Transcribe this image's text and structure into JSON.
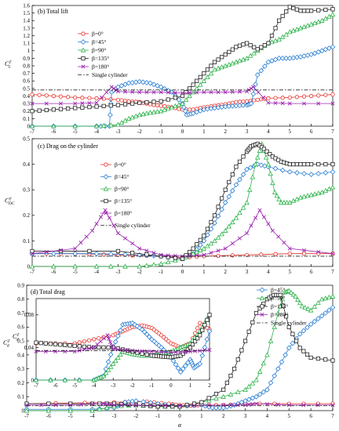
{
  "chart_data": [
    {
      "type": "line",
      "title": "(b) Total lift",
      "ylabel": "C_L^T",
      "ylabel_main": "C",
      "ylabel_sup": "T",
      "ylabel_sub": "L",
      "xlim": [
        -7,
        7
      ],
      "ylim": [
        0,
        1.6
      ],
      "xticks": [
        "-7",
        "-6",
        "-5",
        "-4",
        "-3",
        "-2",
        "-1",
        "0",
        "1",
        "2",
        "3",
        "4",
        "5",
        "6",
        "7"
      ],
      "yticks": [
        "0",
        "0.1",
        "0.2",
        "0.3",
        "0.4",
        "0.5",
        "0.6",
        "0.7",
        "0.8",
        "0.9",
        "1",
        "1.1",
        "1.2",
        "1.3",
        "1.4",
        "1.5",
        "1.6"
      ],
      "legend_position": "upper-left",
      "series": [
        {
          "name": "β=0°",
          "color": "#e8302a",
          "marker": "circle",
          "x": [
            -7,
            -6,
            -5,
            -4,
            -3,
            -2.5,
            -2,
            -1.5,
            -1,
            -0.5,
            0,
            0.5,
            1,
            1.5,
            2,
            2.5,
            3,
            3.5,
            4,
            5,
            6,
            7
          ],
          "y": [
            0.42,
            0.4,
            0.38,
            0.37,
            0.35,
            0.33,
            0.32,
            0.29,
            0.27,
            0.25,
            0.22,
            0.22,
            0.25,
            0.27,
            0.29,
            0.32,
            0.33,
            0.35,
            0.37,
            0.38,
            0.4,
            0.42
          ]
        },
        {
          "name": "β=45°",
          "color": "#2a7fd4",
          "marker": "diamond",
          "x": [
            -7,
            -4,
            -3.4,
            -3.3,
            -3,
            -2.5,
            -2,
            -1.5,
            -1,
            -0.5,
            0,
            0.2,
            0.5,
            1,
            1.5,
            2,
            2.5,
            3,
            3.2,
            3.5,
            4,
            4.5,
            5,
            5.5,
            6,
            6.5,
            7
          ],
          "y": [
            0,
            0,
            0,
            0.45,
            0.52,
            0.57,
            0.59,
            0.57,
            0.52,
            0.45,
            0.3,
            0.15,
            0.17,
            0.22,
            0.24,
            0.26,
            0.27,
            0.28,
            0.3,
            0.68,
            0.85,
            0.9,
            0.9,
            0.92,
            0.95,
            1.0,
            1.05
          ]
        },
        {
          "name": "β=90°",
          "color": "#2db34a",
          "marker": "triangle",
          "x": [
            -7,
            -4,
            -3,
            -2.5,
            -2,
            -1.5,
            -1,
            -0.5,
            0,
            0.5,
            1,
            1.5,
            2,
            2.5,
            3,
            3.5,
            4,
            4.5,
            5,
            5.5,
            6,
            6.5,
            7
          ],
          "y": [
            0,
            0,
            0.02,
            0.1,
            0.15,
            0.18,
            0.2,
            0.25,
            0.3,
            0.45,
            0.6,
            0.75,
            0.8,
            0.85,
            0.9,
            1.0,
            1.1,
            1.15,
            1.25,
            1.3,
            1.35,
            1.4,
            1.48
          ]
        },
        {
          "name": "β=135°",
          "color": "#222222",
          "marker": "square",
          "x": [
            -7,
            -6,
            -5,
            -4,
            -3,
            -2,
            -1,
            0,
            0.5,
            1,
            1.5,
            2,
            2.5,
            3,
            3.5,
            4,
            4.5,
            5,
            5.5,
            6,
            7
          ],
          "y": [
            0.2,
            0.22,
            0.24,
            0.26,
            0.28,
            0.31,
            0.33,
            0.4,
            0.55,
            0.7,
            0.85,
            0.95,
            1.05,
            1.1,
            1.02,
            1.1,
            1.4,
            1.58,
            1.53,
            1.53,
            1.55
          ]
        },
        {
          "name": "β=180°",
          "color": "#9c27b0",
          "marker": "x",
          "x": [
            -7,
            -5,
            -4,
            -3.3,
            -3,
            -2,
            -1,
            0,
            1,
            2,
            3,
            3.3,
            4,
            5,
            7
          ],
          "y": [
            0.3,
            0.3,
            0.31,
            0.52,
            0.46,
            0.45,
            0.45,
            0.44,
            0.45,
            0.45,
            0.46,
            0.52,
            0.31,
            0.3,
            0.3
          ]
        },
        {
          "name": "Single cylinder",
          "color": "#222222",
          "marker": "none",
          "dash": "5,2,1.5,2",
          "x": [
            -7,
            7
          ],
          "y": [
            0.48,
            0.48
          ]
        }
      ]
    },
    {
      "type": "line",
      "title": "(c) Drag on the cylinder",
      "ylabel": "C_DC^T",
      "ylabel_main": "C",
      "ylabel_sup": "T",
      "ylabel_sub": "DC",
      "xlim": [
        -7,
        7
      ],
      "ylim": [
        0,
        0.5
      ],
      "xticks": [
        "-7",
        "-6",
        "-5",
        "-4",
        "-3",
        "-2",
        "-1",
        "0",
        "1",
        "2",
        "3",
        "4",
        "5",
        "6",
        "7"
      ],
      "yticks": [
        "0",
        "0.1",
        "0.2",
        "0.3",
        "0.4",
        "0.5"
      ],
      "legend_position": "upper-left",
      "series": [
        {
          "name": "β=0°",
          "color": "#e8302a",
          "marker": "circle",
          "x": [
            -7,
            -5,
            -3,
            -1,
            0,
            1,
            3,
            5,
            7
          ],
          "y": [
            0.05,
            0.05,
            0.045,
            0.04,
            0.035,
            0.04,
            0.045,
            0.05,
            0.05
          ]
        },
        {
          "name": "β=45°",
          "color": "#2a7fd4",
          "marker": "diamond",
          "x": [
            -7,
            -4,
            -2,
            -1,
            0,
            0.5,
            1,
            1.5,
            2,
            2.5,
            3,
            3.5,
            4,
            5,
            6,
            7
          ],
          "y": [
            0.05,
            0.05,
            0.045,
            0.04,
            0.03,
            0.05,
            0.1,
            0.17,
            0.25,
            0.32,
            0.38,
            0.4,
            0.39,
            0.37,
            0.36,
            0.37
          ]
        },
        {
          "name": "β=90°",
          "color": "#2db34a",
          "marker": "triangle",
          "x": [
            -7,
            -4,
            -2,
            -1,
            0,
            0.5,
            1,
            1.5,
            2,
            2.5,
            3,
            3.4,
            3.7,
            4,
            4.3,
            4.6,
            5,
            5.5,
            6,
            6.5,
            7
          ],
          "y": [
            0,
            0,
            0,
            0.01,
            0.03,
            0.05,
            0.07,
            0.1,
            0.14,
            0.19,
            0.25,
            0.4,
            0.48,
            0.4,
            0.29,
            0.25,
            0.25,
            0.27,
            0.28,
            0.29,
            0.31
          ]
        },
        {
          "name": "β=135°",
          "color": "#222222",
          "marker": "square",
          "x": [
            -7,
            -3,
            -1,
            0,
            0.5,
            1,
            1.5,
            2,
            2.5,
            3,
            3.2,
            3.5,
            3.8,
            4.2,
            4.6,
            5,
            5.5,
            6,
            7
          ],
          "y": [
            0.06,
            0.06,
            0.04,
            0.03,
            0.07,
            0.12,
            0.2,
            0.3,
            0.39,
            0.45,
            0.47,
            0.48,
            0.46,
            0.43,
            0.41,
            0.4,
            0.4,
            0.4,
            0.4
          ]
        },
        {
          "name": "β=180°",
          "color": "#9c27b0",
          "marker": "x",
          "x": [
            -7,
            -5,
            -4.2,
            -3.6,
            -3,
            -2,
            -1,
            0,
            1,
            2,
            3,
            3.6,
            4.2,
            5,
            7
          ],
          "y": [
            0.05,
            0.07,
            0.14,
            0.22,
            0.13,
            0.07,
            0.045,
            0.04,
            0.045,
            0.07,
            0.13,
            0.22,
            0.14,
            0.07,
            0.05
          ]
        },
        {
          "name": "Single cylinder",
          "color": "#222222",
          "marker": "none",
          "dash": "5,2,1.5,2",
          "x": [
            -7,
            7
          ],
          "y": [
            0.04,
            0.04
          ]
        }
      ]
    },
    {
      "type": "line",
      "title": "(d) Total drag",
      "xlabel": "α",
      "ylabel": "C_d^T",
      "ylabel_main": "C",
      "ylabel_sup": "T",
      "ylabel_sub": "d",
      "xlim": [
        -7,
        7
      ],
      "ylim": [
        0,
        0.9
      ],
      "xticks": [
        "-7",
        "-6",
        "-5",
        "-4",
        "-3",
        "-2",
        "-1",
        "0",
        "1",
        "2",
        "3",
        "4",
        "5",
        "6",
        "7"
      ],
      "yticks": [
        "0",
        "0.1",
        "0.2",
        "0.3",
        "0.4",
        "0.5",
        "0.6",
        "0.7",
        "0.8",
        "0.9"
      ],
      "legend_position": "upper-right",
      "series": [
        {
          "name": "β=0°",
          "color": "#e8302a",
          "marker": "circle",
          "x": [
            -7,
            -3,
            -1.5,
            -0.5,
            0,
            0.5,
            1,
            2,
            3,
            5,
            7
          ],
          "y": [
            0.05,
            0.06,
            0.065,
            0.05,
            0.04,
            0.035,
            0.04,
            0.04,
            0.05,
            0.05,
            0.05
          ]
        },
        {
          "name": "β=45°",
          "color": "#2a7fd4",
          "marker": "diamond",
          "x": [
            -7,
            -4,
            -3,
            -2.5,
            -2,
            -1,
            0,
            1,
            1.5,
            2,
            2.5,
            3,
            3.5,
            4,
            4.5,
            5,
            5.5,
            6,
            6.5,
            7
          ],
          "y": [
            0.01,
            0.01,
            0.02,
            0.06,
            0.07,
            0.05,
            0.03,
            0.04,
            0.02,
            0.02,
            0.04,
            0.07,
            0.1,
            0.15,
            0.3,
            0.45,
            0.55,
            0.62,
            0.68,
            0.74
          ]
        },
        {
          "name": "β=90°",
          "color": "#2db34a",
          "marker": "triangle",
          "x": [
            -7,
            -4,
            -3,
            -2,
            -1,
            0,
            1,
            2,
            3,
            3.5,
            4,
            4.5,
            4.8,
            5,
            5.3,
            5.6,
            6,
            6.5,
            7
          ],
          "y": [
            0,
            0,
            0.03,
            0.04,
            0.03,
            0.03,
            0.06,
            0.1,
            0.15,
            0.22,
            0.4,
            0.7,
            0.85,
            0.86,
            0.82,
            0.75,
            0.72,
            0.8,
            0.82
          ]
        },
        {
          "name": "β=135°",
          "color": "#222222",
          "marker": "square",
          "x": [
            -7,
            -4,
            -3,
            -2,
            -1,
            0,
            1,
            2,
            2.5,
            3,
            3.5,
            4,
            4.3,
            4.6,
            5,
            5.5,
            6,
            7
          ],
          "y": [
            0.05,
            0.05,
            0.05,
            0.04,
            0.03,
            0.03,
            0.06,
            0.15,
            0.3,
            0.5,
            0.7,
            0.8,
            0.83,
            0.83,
            0.6,
            0.45,
            0.38,
            0.36
          ]
        },
        {
          "name": "β=180°",
          "color": "#9c27b0",
          "marker": "x",
          "x": [
            -7,
            -5,
            -3.5,
            -3,
            -2,
            0,
            2,
            3,
            3.5,
            5,
            7
          ],
          "y": [
            0.04,
            0.04,
            0.05,
            0.04,
            0.04,
            0.035,
            0.04,
            0.04,
            0.05,
            0.04,
            0.04
          ]
        },
        {
          "name": "Single cylinder",
          "color": "#222222",
          "marker": "none",
          "dash": "5,2,1.5,2",
          "x": [
            -7,
            7
          ],
          "y": [
            0.035,
            0.035
          ]
        }
      ],
      "inset": {
        "xlim": [
          -7,
          2
        ],
        "ylim": [
          0,
          0.1
        ],
        "xticks": [
          "-7",
          "-6",
          "-5",
          "-4",
          "-3",
          "-2",
          "-1",
          "0",
          "1",
          "2"
        ],
        "yticks": [
          "0",
          "0.04",
          "0.08"
        ],
        "series": [
          {
            "name": "β=0°",
            "color": "#e8302a",
            "marker": "circle",
            "x": [
              -7,
              -5,
              -4,
              -3,
              -2.5,
              -2,
              -1.5,
              -1,
              -0.5,
              0,
              0.5,
              1,
              1.5,
              2
            ],
            "y": [
              0.045,
              0.045,
              0.05,
              0.055,
              0.06,
              0.065,
              0.067,
              0.064,
              0.055,
              0.045,
              0.04,
              0.045,
              0.07,
              0.062
            ]
          },
          {
            "name": "β=45°",
            "color": "#2a7fd4",
            "marker": "diamond",
            "x": [
              -7,
              -4,
              -3.5,
              -3,
              -2.5,
              -2,
              -1.5,
              -1,
              -0.5,
              0,
              0.5,
              1,
              1.2,
              1.5,
              2
            ],
            "y": [
              0,
              0,
              0.005,
              0.04,
              0.068,
              0.07,
              0.062,
              0.05,
              0.04,
              0.028,
              0.01,
              0.025,
              0.015,
              0.02,
              0.06
            ]
          },
          {
            "name": "β=90°",
            "color": "#2db34a",
            "marker": "triangle",
            "x": [
              -7,
              -4,
              -3.5,
              -3,
              -2.5,
              -2,
              -1.5,
              -1,
              -0.5,
              0,
              0.5,
              1,
              1.5,
              2
            ],
            "y": [
              0,
              0,
              0.005,
              0.02,
              0.035,
              0.032,
              0.03,
              0.03,
              0.032,
              0.035,
              0.04,
              0.045,
              0.06,
              0.08
            ]
          },
          {
            "name": "β=135°",
            "color": "#222222",
            "marker": "square",
            "x": [
              -7,
              -6,
              -5,
              -4,
              -3,
              -2,
              -1,
              -0.5,
              0,
              0.5,
              1,
              1.5,
              2
            ],
            "y": [
              0.046,
              0.044,
              0.042,
              0.04,
              0.04,
              0.035,
              0.03,
              0.029,
              0.028,
              0.03,
              0.04,
              0.055,
              0.08
            ]
          },
          {
            "name": "β=180°",
            "color": "#9c27b0",
            "marker": "x",
            "x": [
              -7,
              -5,
              -4,
              -3.3,
              -3,
              -2,
              -1,
              0,
              1,
              2
            ],
            "y": [
              0.035,
              0.035,
              0.04,
              0.055,
              0.038,
              0.036,
              0.035,
              0.034,
              0.035,
              0.037
            ]
          },
          {
            "name": "Single cylinder",
            "color": "#222222",
            "marker": "none",
            "dash": "5,2,1.5,2",
            "x": [
              -7,
              2
            ],
            "y": [
              0.036,
              0.036
            ]
          }
        ]
      }
    }
  ]
}
